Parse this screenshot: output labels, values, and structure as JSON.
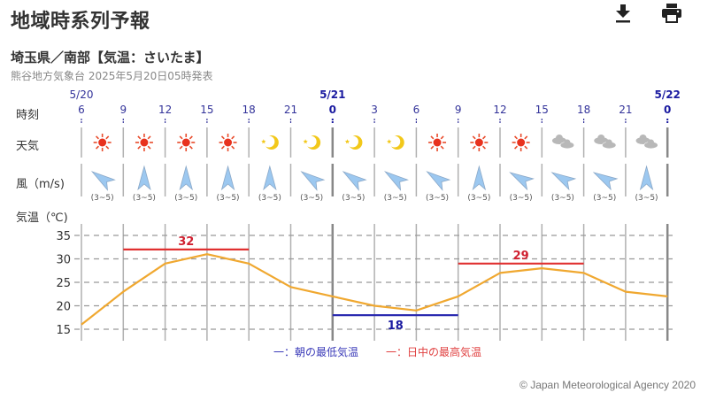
{
  "header": {
    "title": "地域時系列予報",
    "download_icon": "download-icon",
    "print_icon": "print-icon"
  },
  "area": {
    "subtitle": "埼玉県／南部【気温：さいたま】",
    "issued": "熊谷地方気象台 2025年5月20日05時発表"
  },
  "row_labels": {
    "time": "時刻",
    "weather": "天気",
    "wind": "風（m/s)",
    "temp": "気温（℃)"
  },
  "dates": [
    {
      "label": "5/20",
      "index": 0,
      "bold": false
    },
    {
      "label": "5/21",
      "index": 6,
      "bold": true
    },
    {
      "label": "5/22",
      "index": 14,
      "bold": true
    }
  ],
  "hours": [
    "6",
    "9",
    "12",
    "15",
    "18",
    "21",
    "0",
    "3",
    "6",
    "9",
    "12",
    "15",
    "18",
    "21",
    "0"
  ],
  "weather": [
    "sunny",
    "sunny",
    "sunny",
    "sunny",
    "clear-night",
    "clear-night",
    "clear-night",
    "clear-night",
    "sunny",
    "sunny",
    "sunny",
    "cloudy",
    "cloudy",
    "cloudy"
  ],
  "wind": [
    {
      "dir": "northwest",
      "range": "(3~5)"
    },
    {
      "dir": "south",
      "range": "(3~5)"
    },
    {
      "dir": "south",
      "range": "(3~5)"
    },
    {
      "dir": "south",
      "range": "(3~5)"
    },
    {
      "dir": "south",
      "range": "(3~5)"
    },
    {
      "dir": "northwest",
      "range": "(3~5)"
    },
    {
      "dir": "northwest",
      "range": "(3~5)"
    },
    {
      "dir": "northwest",
      "range": "(3~5)"
    },
    {
      "dir": "northwest",
      "range": "(3~5)"
    },
    {
      "dir": "south",
      "range": "(3~5)"
    },
    {
      "dir": "west-northwest",
      "range": "(3~5)"
    },
    {
      "dir": "west-northwest",
      "range": "(3~5)"
    },
    {
      "dir": "west-northwest",
      "range": "(3~5)"
    },
    {
      "dir": "south",
      "range": "(3~5)"
    }
  ],
  "legend": {
    "min_label": "一：朝の最低気温",
    "max_label": "一：日中の最高気温",
    "min_color": "#2a2ab0",
    "max_color": "#e03030"
  },
  "copyright": "© Japan Meteorological Agency 2020",
  "chart_data": {
    "type": "line",
    "title": "気温（℃)",
    "xlabel": "時刻",
    "ylabel": "気温（℃)",
    "x": [
      "5/20 6",
      "9",
      "12",
      "15",
      "18",
      "21",
      "5/21 0",
      "3",
      "6",
      "9",
      "12",
      "15",
      "18",
      "21",
      "5/22 0"
    ],
    "series": [
      {
        "name": "気温",
        "color": "#f0a830",
        "values": [
          16,
          23,
          29,
          31,
          29,
          24,
          22,
          20,
          19,
          22,
          27,
          28,
          27,
          23,
          22
        ]
      }
    ],
    "max_temps": [
      {
        "label": "32",
        "value": 32,
        "from_index": 1,
        "to_index": 4,
        "color": "#e03030"
      },
      {
        "label": "29",
        "value": 29,
        "from_index": 9,
        "to_index": 12,
        "color": "#e03030"
      }
    ],
    "min_temps": [
      {
        "label": "18",
        "value": 18,
        "from_index": 6,
        "to_index": 9,
        "color": "#2a2ab0"
      }
    ],
    "yticks": [
      15,
      20,
      25,
      30,
      35
    ],
    "ylim": [
      15,
      35
    ],
    "grid": true,
    "legend_position": "bottom"
  }
}
